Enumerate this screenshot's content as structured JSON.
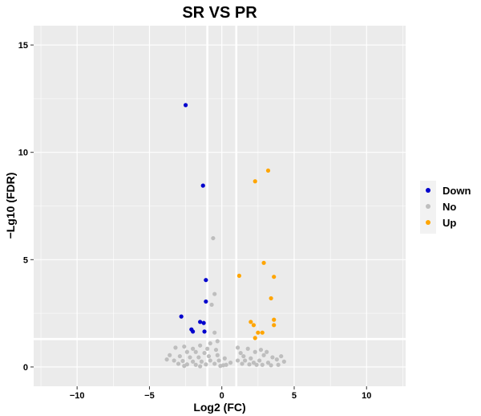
{
  "chart_data": {
    "type": "scatter",
    "title": "SR VS PR",
    "xlabel": "Log2 (FC)",
    "ylabel": "−Lg10 (FDR)",
    "xlim": [
      -13.0,
      12.7
    ],
    "ylim": [
      -0.9,
      15.9
    ],
    "x_ticks": [
      -10,
      -5,
      0,
      5,
      10
    ],
    "y_ticks": [
      0,
      5,
      10,
      15
    ],
    "grid": true,
    "legend_position": "right",
    "threshold_lines": {
      "x": [
        -1,
        1
      ],
      "y": 1.3
    },
    "colors": {
      "Down": "#0000CD",
      "No": "#BEBEBE",
      "Up": "#FFA500",
      "panel": "#EBEBEB",
      "grid": "#FFFFFF"
    },
    "series": [
      {
        "name": "Down",
        "points": [
          [
            -2.5,
            12.2
          ],
          [
            -1.3,
            8.45
          ],
          [
            -1.1,
            4.05
          ],
          [
            -1.1,
            3.05
          ],
          [
            -2.8,
            2.35
          ],
          [
            -1.5,
            2.1
          ],
          [
            -1.25,
            2.05
          ],
          [
            -2.1,
            1.75
          ],
          [
            -2.0,
            1.65
          ],
          [
            -1.2,
            1.65
          ]
        ]
      },
      {
        "name": "No",
        "points": [
          [
            -0.6,
            6.0
          ],
          [
            -0.5,
            3.4
          ],
          [
            -0.7,
            2.9
          ],
          [
            -0.5,
            1.6
          ],
          [
            -0.3,
            1.2
          ],
          [
            -0.8,
            1.1
          ],
          [
            -1.5,
            1.0
          ],
          [
            -2.6,
            0.95
          ],
          [
            -3.2,
            0.9
          ],
          [
            -2.0,
            0.85
          ],
          [
            -1.0,
            0.85
          ],
          [
            -0.4,
            0.8
          ],
          [
            -2.4,
            0.7
          ],
          [
            -1.8,
            0.7
          ],
          [
            -1.2,
            0.65
          ],
          [
            -3.6,
            0.55
          ],
          [
            -2.9,
            0.5
          ],
          [
            -2.2,
            0.45
          ],
          [
            -1.6,
            0.45
          ],
          [
            -0.9,
            0.5
          ],
          [
            -0.3,
            0.55
          ],
          [
            -3.8,
            0.35
          ],
          [
            -3.3,
            0.3
          ],
          [
            -2.7,
            0.28
          ],
          [
            -2.0,
            0.25
          ],
          [
            -1.4,
            0.25
          ],
          [
            -0.8,
            0.3
          ],
          [
            -0.2,
            0.3
          ],
          [
            -3.0,
            0.15
          ],
          [
            -2.4,
            0.12
          ],
          [
            -1.8,
            0.1
          ],
          [
            -1.1,
            0.12
          ],
          [
            -0.5,
            0.15
          ],
          [
            -0.1,
            0.05
          ],
          [
            -1.5,
            0.03
          ],
          [
            -2.6,
            0.05
          ],
          [
            0.3,
            0.1
          ],
          [
            0.6,
            0.2
          ],
          [
            0.2,
            0.4
          ],
          [
            0.1,
            0.08
          ],
          [
            1.1,
            0.9
          ],
          [
            1.3,
            0.65
          ],
          [
            1.5,
            0.5
          ],
          [
            1.8,
            0.85
          ],
          [
            2.0,
            0.4
          ],
          [
            2.3,
            0.7
          ],
          [
            2.6,
            0.3
          ],
          [
            2.9,
            0.55
          ],
          [
            3.2,
            0.2
          ],
          [
            3.5,
            0.45
          ],
          [
            3.8,
            0.35
          ],
          [
            4.1,
            0.5
          ],
          [
            4.3,
            0.25
          ],
          [
            1.4,
            0.15
          ],
          [
            1.9,
            0.12
          ],
          [
            2.4,
            0.1
          ],
          [
            2.8,
            0.1
          ],
          [
            3.4,
            0.08
          ],
          [
            3.9,
            0.1
          ],
          [
            1.1,
            0.3
          ],
          [
            1.6,
            0.3
          ],
          [
            2.2,
            0.2
          ],
          [
            2.7,
            0.8
          ],
          [
            3.1,
            0.7
          ]
        ]
      },
      {
        "name": "Up",
        "points": [
          [
            3.2,
            9.15
          ],
          [
            2.3,
            8.65
          ],
          [
            2.9,
            4.85
          ],
          [
            3.6,
            4.2
          ],
          [
            1.2,
            4.25
          ],
          [
            3.4,
            3.2
          ],
          [
            3.6,
            2.2
          ],
          [
            2.0,
            2.1
          ],
          [
            2.2,
            1.95
          ],
          [
            3.6,
            1.95
          ],
          [
            2.5,
            1.6
          ],
          [
            2.8,
            1.6
          ],
          [
            2.3,
            1.35
          ]
        ]
      }
    ]
  }
}
